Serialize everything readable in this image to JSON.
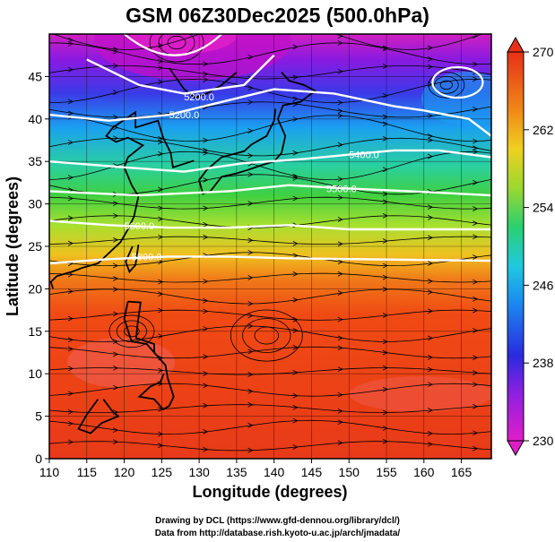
{
  "title": "GSM 06Z30Dec2025 (500.0hPa)",
  "x_axis": {
    "label": "Longitude (degrees)",
    "ticks": [
      "110",
      "115",
      "120",
      "125",
      "130",
      "135",
      "140",
      "145",
      "150",
      "155",
      "160",
      "165"
    ],
    "range": [
      110,
      169
    ]
  },
  "y_axis": {
    "label": "Latitude  (degrees)",
    "ticks": [
      "0",
      "5",
      "10",
      "15",
      "20",
      "25",
      "30",
      "35",
      "40",
      "45"
    ],
    "range": [
      0,
      50
    ]
  },
  "colorbar": {
    "ticks": [
      "230",
      "238",
      "246",
      "254",
      "262",
      "270"
    ],
    "range": [
      230,
      270
    ],
    "colors": [
      "#e01ec8",
      "#3030e0",
      "#22a0f0",
      "#2ad0b0",
      "#50d040",
      "#c0e030",
      "#f0a020",
      "#f05010",
      "#e83018"
    ]
  },
  "contours": [
    {
      "label": "5200.0"
    },
    {
      "label": "5300.0"
    },
    {
      "label": "5400.0"
    },
    {
      "label": "5500.0"
    },
    {
      "label": "5600.0"
    },
    {
      "label": "5700.0"
    },
    {
      "label": "5800.0"
    }
  ],
  "credits": {
    "line1": "Drawing by DCL (https://www.gfd-dennou.org/library/dcl/)",
    "line2": "Data from http://database.rish.kyoto-u.ac.jp/arch/jmadata/"
  }
}
